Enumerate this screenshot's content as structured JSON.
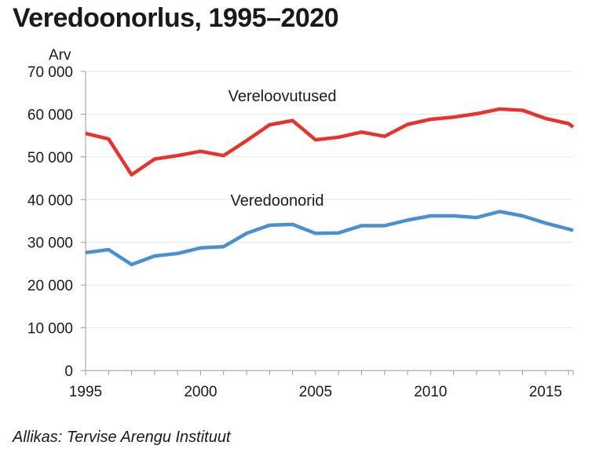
{
  "title": "Veredoonorlus, 1995–2020",
  "source": "Allikas: Tervise Arengu Instituut",
  "colors": {
    "series1": "#e8322c",
    "series2": "#4a8fd0",
    "grid": "#e6e6e6",
    "axis": "#999999"
  },
  "chart_data": {
    "type": "line",
    "title": "Veredoonorlus, 1995–2020",
    "xlabel": "",
    "ylabel": "Arv",
    "xlim": [
      1995,
      2016.2
    ],
    "ylim": [
      0,
      70000
    ],
    "grid": true,
    "x": [
      1995,
      1996,
      1997,
      1998,
      1999,
      2000,
      2001,
      2002,
      2003,
      2004,
      2005,
      2006,
      2007,
      2008,
      2009,
      2010,
      2011,
      2012,
      2013,
      2014,
      2015,
      2016,
      2016.2
    ],
    "x_ticks": [
      {
        "value": 1995,
        "label": "1995"
      },
      {
        "value": 2000,
        "label": "2000"
      },
      {
        "value": 2005,
        "label": "2005"
      },
      {
        "value": 2010,
        "label": "2010"
      },
      {
        "value": 2015,
        "label": "2015"
      }
    ],
    "y_ticks": [
      {
        "value": 0,
        "label": "0"
      },
      {
        "value": 10000,
        "label": "10 000"
      },
      {
        "value": 20000,
        "label": "20 000"
      },
      {
        "value": 30000,
        "label": "30 000"
      },
      {
        "value": 40000,
        "label": "40 000"
      },
      {
        "value": 50000,
        "label": "50 000"
      },
      {
        "value": 60000,
        "label": "60 000"
      },
      {
        "value": 70000,
        "label": "70 000"
      }
    ],
    "series": [
      {
        "name": "Vereloovutused",
        "color": "#e8322c",
        "label_at": [
          2001.2,
          63000
        ],
        "values": [
          55500,
          54200,
          45800,
          49500,
          50300,
          51300,
          50300,
          53800,
          57500,
          58500,
          54000,
          54600,
          55800,
          54800,
          57600,
          58800,
          59300,
          60100,
          61200,
          60900,
          59000,
          57800,
          57000
        ]
      },
      {
        "name": "Veredoonorid",
        "color": "#4a8fd0",
        "label_at": [
          2001.3,
          38600
        ],
        "values": [
          27600,
          28300,
          24800,
          26800,
          27400,
          28700,
          29000,
          32100,
          34000,
          34200,
          32100,
          32200,
          33900,
          33900,
          35200,
          36200,
          36200,
          35800,
          37200,
          36200,
          34500,
          33100,
          32800
        ]
      }
    ]
  }
}
